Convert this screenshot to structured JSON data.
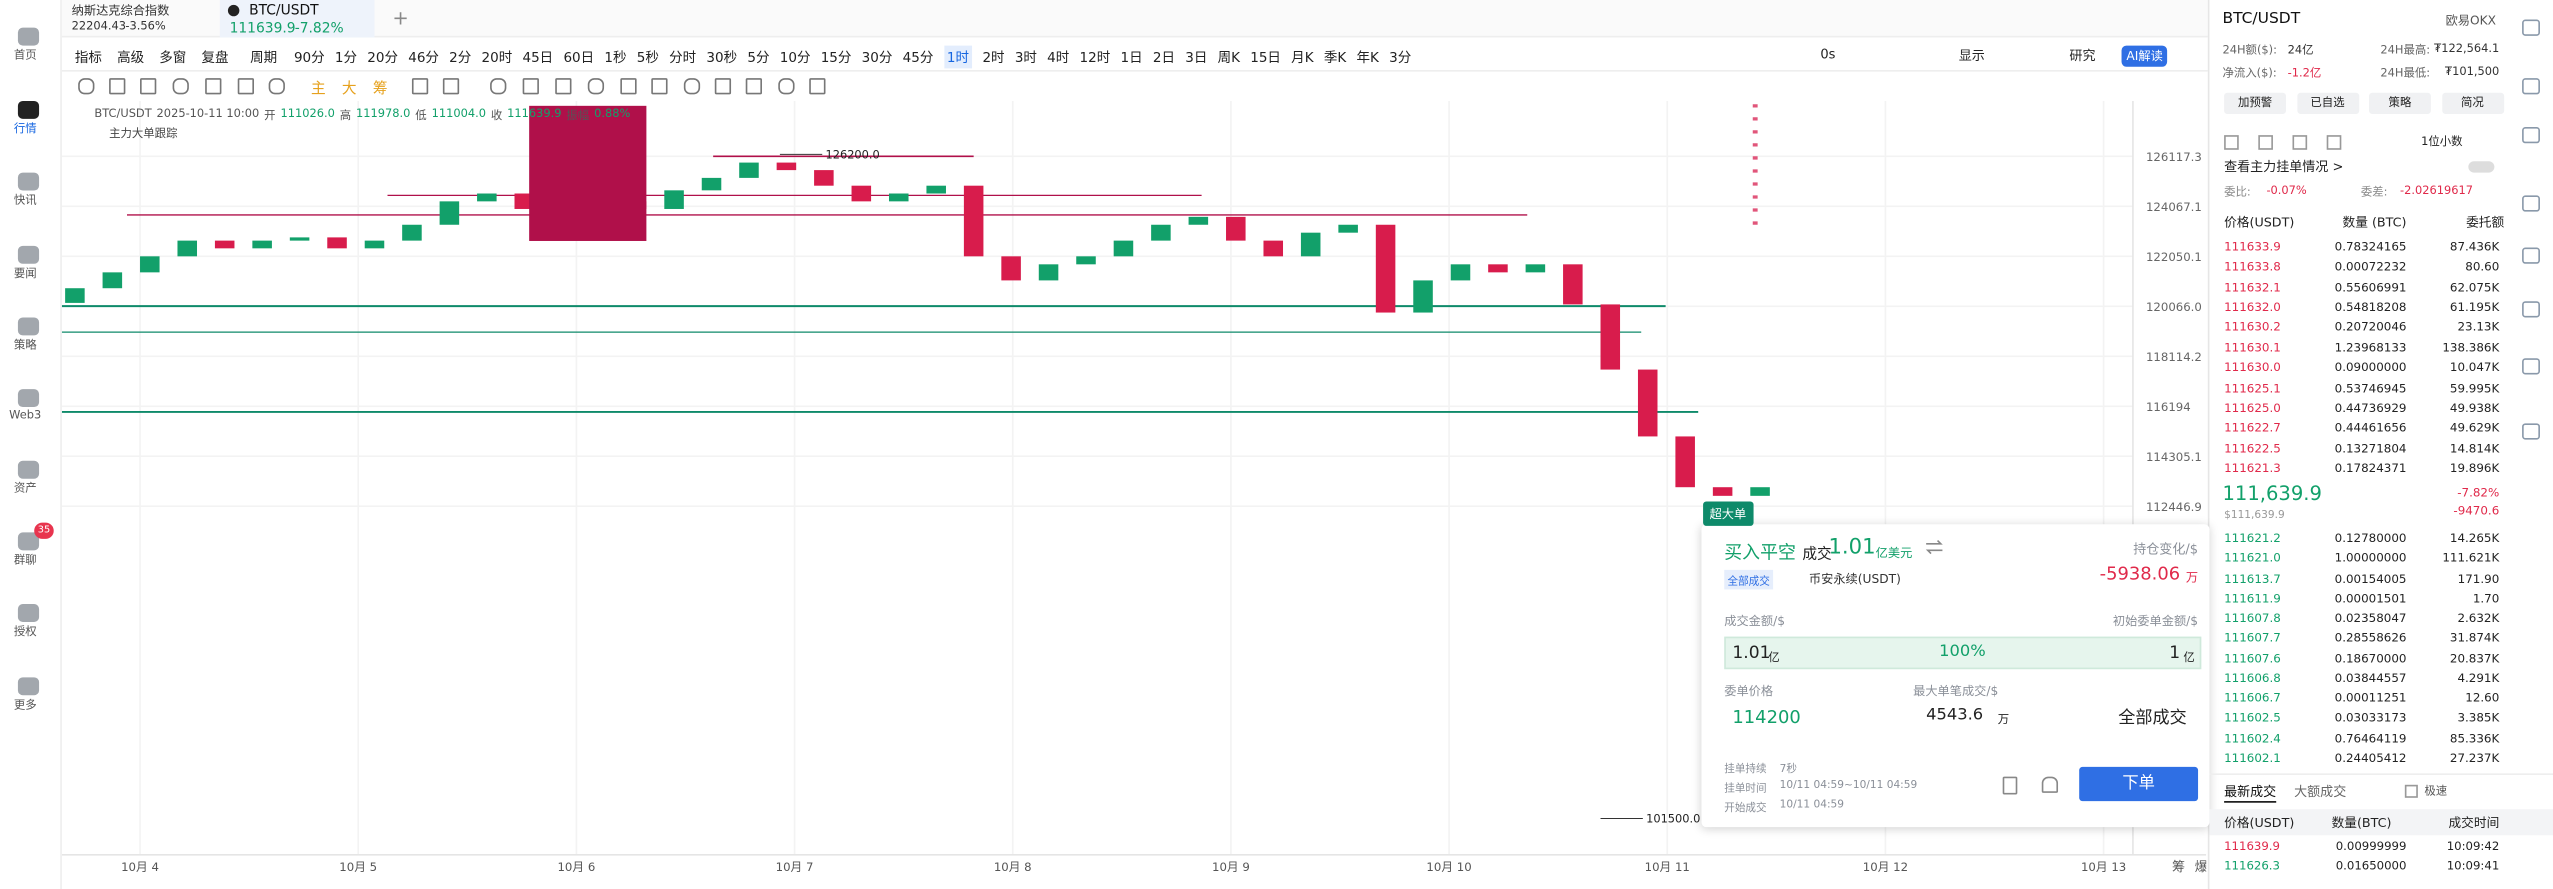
{
  "sidebar": [
    "首页",
    "行情",
    "快讯",
    "要闻",
    "策略",
    "Web3",
    "资产",
    "群聊",
    "授权",
    "更多"
  ],
  "sidebar_active": 1,
  "sidebar_badge": "35",
  "top_bar": {
    "index_name": "纳斯达克综合指数",
    "index_value": "22204.43",
    "index_change": "-3.56%",
    "tab_symbol": "BTC/USDT",
    "tab_price": "111639.9",
    "tab_change": "-7.82%",
    "add": "+"
  },
  "toolbar": {
    "left": [
      "指标",
      "高级",
      "多窗",
      "复盘"
    ],
    "period_label": "周期",
    "periods": [
      "90分",
      "1分",
      "20分",
      "46分",
      "2分",
      "20时",
      "45日",
      "60日",
      "1秒",
      "5秒",
      "分时",
      "30秒",
      "5分",
      "10分",
      "15分",
      "30分",
      "45分",
      "1时",
      "2时",
      "3时",
      "4时",
      "12时",
      "1日",
      "2日",
      "3日",
      "周K",
      "15日",
      "月K",
      "季K",
      "年K",
      "3分"
    ],
    "active_period": 17,
    "right": [
      "0s",
      "显示",
      "研究"
    ],
    "ai": "AI解读"
  },
  "tools": [
    "主",
    "大",
    "筹"
  ],
  "chart_data": {
    "type": "candlestick",
    "legend": {
      "symbol": "BTC/USDT",
      "time": "2025-10-11 10:00",
      "open_label": "开",
      "open": "111026.0",
      "high_label": "高",
      "high": "111978.0",
      "low_label": "低",
      "low": "111004.0",
      "close_label": "收",
      "close": "111639.9",
      "amp_label": "振幅",
      "amp": "0.88%"
    },
    "indicator": "主力大单跟踪",
    "categories": [
      "10月 4",
      "10月 5",
      "10月 6",
      "10月 7",
      "10月 8",
      "10月 9",
      "10月 10",
      "10月 11",
      "10月 12",
      "10月 13"
    ],
    "first_open": 120200,
    "closes": [
      120780,
      121410,
      122050,
      122680,
      122370,
      122680,
      122810,
      122370,
      122680,
      123320,
      124270,
      124590,
      123960,
      124080,
      124270,
      123960,
      124720,
      125230,
      125860,
      125550,
      124910,
      124270,
      124590,
      124910,
      122050,
      121090,
      121730,
      122050,
      122680,
      123320,
      123640,
      122680,
      122050,
      123000,
      123320,
      119820,
      121090,
      121730,
      121410,
      121730,
      120140,
      117600,
      115050,
      113150,
      112830,
      113150
    ],
    "up_color": "#12a06a",
    "down_color": "#d81c4c",
    "log_scale": true,
    "ylim": [
      100300,
      128430
    ],
    "yticks": [
      126117.3,
      124067.1,
      122050.1,
      {
        "value": 120066,
        "label": "120066.0"
      },
      118114.2,
      116194,
      114305.1,
      112446.9
    ],
    "grid": true,
    "annotations": [
      {
        "value": 126200,
        "label": "126200.0"
      },
      {
        "value": 101500,
        "label": "101500.0"
      }
    ],
    "axis_icons": [
      "筹",
      "爆"
    ]
  },
  "popup": {
    "tag": "超大单",
    "title": "买入平空",
    "deal": "成交",
    "amount": "1.01",
    "amount_unit": "亿美元",
    "position_label": "持仓变化/$",
    "position_value": "-5938.06",
    "position_unit": "万",
    "filter": "全部成交",
    "exchange": "币安永续(USDT)",
    "deal_amount_label": "成交金额/$",
    "initial_label": "初始委单金额/$",
    "deal_value": "1.01",
    "deal_unit": "亿",
    "fill": "100%",
    "initial_value": "1",
    "initial_unit": "亿",
    "price_label": "委单价格",
    "max_label": "最大单笔成交/$",
    "price": "114200",
    "max_value": "4543.6",
    "max_unit": "万",
    "status": "全部成交",
    "duration_label": "挂单持续",
    "duration": "7秒",
    "time_label": "挂单时间",
    "time": "10/11 04:59~10/11 04:59",
    "start_label": "开始成交",
    "start": "10/11 04:59",
    "button": "下单"
  },
  "right_panel": {
    "symbol": "BTC/USDT",
    "exchange": "欧易OKX",
    "stats": [
      [
        "24H额($):",
        "24亿"
      ],
      [
        "24H最高:",
        "₮122,564.1"
      ],
      [
        "净流入($):",
        "-1.2亿"
      ],
      [
        "24H最低:",
        "₮101,500"
      ]
    ],
    "buttons": [
      "加预警",
      "已自选",
      "策略",
      "简况"
    ],
    "decimals": "1位小数",
    "main_orders": "查看主力挂单情况 >",
    "ratio_label": "委比:",
    "ratio": "-0.07%",
    "diff_label": "委差:",
    "diff": "-2.02619617",
    "headers": [
      "价格(USDT)",
      "数量 (BTC)",
      "委托额"
    ],
    "asks": [
      [
        "111633.9",
        "0.78324165",
        "87.436K"
      ],
      [
        "111633.8",
        "0.00072232",
        "80.60"
      ],
      [
        "111632.1",
        "0.55606991",
        "62.075K"
      ],
      [
        "111632.0",
        "0.54818208",
        "61.195K"
      ],
      [
        "111630.2",
        "0.20720046",
        "23.13K"
      ],
      [
        "111630.1",
        "1.23968133",
        "138.386K"
      ],
      [
        "111630.0",
        "0.09000000",
        "10.047K"
      ],
      [
        "111625.1",
        "0.53746945",
        "59.995K"
      ],
      [
        "111625.0",
        "0.44736929",
        "49.938K"
      ],
      [
        "111622.7",
        "0.44461656",
        "49.629K"
      ],
      [
        "111622.5",
        "0.13271804",
        "14.814K"
      ],
      [
        "111621.3",
        "0.17824371",
        "19.896K"
      ]
    ],
    "last_price": "111,639.9",
    "last_usd": "$111,639.9",
    "last_change": "-7.82%",
    "last_diff": "-9470.6",
    "bids": [
      [
        "111621.2",
        "0.12780000",
        "14.265K"
      ],
      [
        "111621.0",
        "1.00000000",
        "111.621K"
      ],
      [
        "111613.7",
        "0.00154005",
        "171.90"
      ],
      [
        "111611.9",
        "0.00001501",
        "1.70"
      ],
      [
        "111607.8",
        "0.02358047",
        "2.632K"
      ],
      [
        "111607.7",
        "0.28558626",
        "31.874K"
      ],
      [
        "111607.6",
        "0.18670000",
        "20.837K"
      ],
      [
        "111606.8",
        "0.03844557",
        "4.291K"
      ],
      [
        "111606.7",
        "0.00011251",
        "12.60"
      ],
      [
        "111602.5",
        "0.03033173",
        "3.385K"
      ],
      [
        "111602.4",
        "0.76464119",
        "85.336K"
      ],
      [
        "111602.1",
        "0.24405412",
        "27.237K"
      ]
    ],
    "trade_tabs": [
      "最新成交",
      "大额成交"
    ],
    "fast": "极速",
    "trade_headers": [
      "价格(USDT)",
      "数量(BTC)",
      "成交时间"
    ],
    "trades": [
      [
        "111639.9",
        "0.00999999",
        "10:09:42"
      ],
      [
        "111626.3",
        "0.01650000",
        "10:09:41"
      ]
    ]
  }
}
